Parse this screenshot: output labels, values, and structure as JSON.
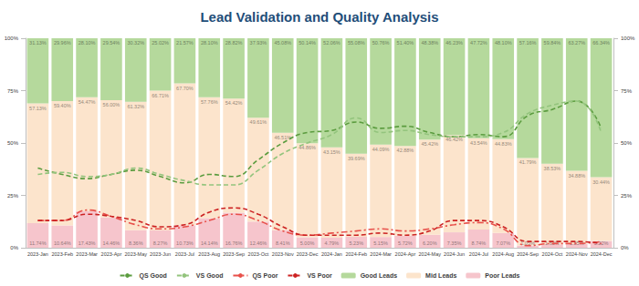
{
  "chart_data": {
    "type": "bar",
    "title": "Lead Validation and Quality Analysis",
    "categories": [
      "2023-Jan",
      "2023-Feb",
      "2023-Mar",
      "2023-Apr",
      "2023-May",
      "2023-Jun",
      "2023-Jul",
      "2023-Aug",
      "2023-Sep",
      "2023-Oct",
      "2023-Nov",
      "2023-Dec",
      "2024-Jan",
      "2024-Feb",
      "2024-Mar",
      "2024-Apr",
      "2024-May",
      "2024-Jun",
      "2024-Jul",
      "2024-Aug",
      "2024-Sep",
      "2024-Oct",
      "2024-Nov",
      "2024-Dec"
    ],
    "stacked": true,
    "grid": false,
    "legend": "bottom",
    "ylim": [
      0,
      100
    ],
    "yticks": [
      {
        "value": 0,
        "label": "0%"
      },
      {
        "value": 25,
        "label": "25%"
      },
      {
        "value": 50,
        "label": "50%"
      },
      {
        "value": 75,
        "label": "75%"
      },
      {
        "value": 100,
        "label": "100%"
      }
    ],
    "y2lim": [
      0,
      100
    ],
    "y2ticks": [
      {
        "value": 0,
        "label": "0%"
      },
      {
        "value": 25,
        "label": "25%"
      },
      {
        "value": 50,
        "label": "50%"
      },
      {
        "value": 75,
        "label": "75%"
      },
      {
        "value": 100,
        "label": "100%"
      }
    ],
    "series": [
      {
        "name": "QS Good",
        "type": "line",
        "axis": "y2",
        "color": "#5b9c3f",
        "line_style": "dashed",
        "marker": "none",
        "values": [
          38,
          35,
          33,
          35,
          37,
          34,
          31,
          35,
          34,
          42,
          50,
          55,
          56,
          60,
          57,
          58,
          55,
          53,
          54,
          53,
          63,
          66,
          70,
          57
        ]
      },
      {
        "name": "VS Good",
        "type": "line",
        "axis": "y2",
        "color": "#93c47d",
        "line_style": "dashed",
        "marker": "none",
        "values": [
          35,
          36,
          34,
          35,
          38,
          35,
          32,
          30,
          30,
          37,
          45,
          50,
          54,
          62,
          55,
          56,
          54,
          53,
          53,
          55,
          64,
          68,
          70,
          55
        ]
      },
      {
        "name": "QS Poor",
        "type": "line",
        "axis": "y2",
        "color": "#e8504a",
        "line_style": "dashdot",
        "marker": "none",
        "values": [
          13,
          13,
          18,
          15,
          11,
          9,
          10,
          13,
          16,
          13,
          8,
          6,
          7,
          8,
          9,
          8,
          9,
          11,
          12,
          9,
          1,
          2,
          2,
          3
        ]
      },
      {
        "name": "VS Poor",
        "type": "line",
        "axis": "y2",
        "color": "#cc2222",
        "line_style": "dashed",
        "marker": "none",
        "values": [
          13,
          13,
          16,
          15,
          13,
          10,
          11,
          17,
          19,
          16,
          10,
          6,
          6,
          6,
          7,
          6,
          8,
          13,
          13,
          10,
          3,
          3,
          3,
          2
        ]
      },
      {
        "name": "Good Leads",
        "type": "bar",
        "color": "#b5d99c",
        "data_labels": true,
        "values": [
          31.13,
          29.96,
          28.1,
          29.54,
          30.32,
          25.02,
          21.57,
          28.1,
          28.82,
          37.93,
          45.08,
          50.14,
          52.06,
          55.08,
          50.76,
          51.4,
          48.38,
          46.23,
          47.72,
          48.1,
          57.16,
          59.84,
          63.27,
          66.34
        ],
        "value_labels": [
          "31.13%",
          "29.96%",
          "28.10%",
          "29.54%",
          "30.32%",
          "25.02%",
          "21.57%",
          "28.10%",
          "28.82%",
          "37.93%",
          "45.08%",
          "50.14%",
          "52.06%",
          "55.08%",
          "50.76%",
          "51.40%",
          "48.38%",
          "46.23%",
          "47.72%",
          "48.10%",
          "57.16%",
          "59.84%",
          "63.27%",
          "66.34%"
        ]
      },
      {
        "name": "Mid Leads",
        "type": "bar",
        "color": "#fce4cc",
        "data_labels": true,
        "values": [
          57.13,
          59.4,
          54.47,
          56.0,
          61.32,
          66.71,
          67.7,
          57.76,
          54.42,
          49.61,
          46.51,
          44.86,
          43.15,
          39.69,
          44.09,
          42.88,
          45.42,
          46.42,
          43.54,
          44.83,
          41.79,
          38.53,
          34.88,
          30.44
        ],
        "value_labels": [
          "57.13%",
          "59.40%",
          "54.47%",
          "56.00%",
          "61.32%",
          "66.71%",
          "67.70%",
          "57.76%",
          "54.42%",
          "49.61%",
          "46.51%",
          "44.86%",
          "43.15%",
          "39.69%",
          "44.09%",
          "42.88%",
          "45.42%",
          "46.42%",
          "43.54%",
          "44.83%",
          "41.79%",
          "38.53%",
          "34.88%",
          "30.44%"
        ]
      },
      {
        "name": "Poor Leads",
        "type": "bar",
        "color": "#f6c5cc",
        "data_labels": true,
        "values": [
          11.74,
          10.64,
          17.43,
          14.46,
          8.36,
          8.27,
          10.73,
          14.14,
          16.76,
          12.46,
          8.41,
          5.0,
          4.79,
          5.23,
          5.15,
          5.72,
          6.2,
          7.35,
          8.74,
          7.07,
          1.05,
          1.63,
          1.85,
          3.22
        ],
        "value_labels": [
          "11.74%",
          "10.64%",
          "17.43%",
          "14.46%",
          "8.36%",
          "8.27%",
          "10.73%",
          "14.14%",
          "16.76%",
          "12.46%",
          "8.41%",
          "5.00%",
          "4.79%",
          "5.23%",
          "5.15%",
          "5.72%",
          "6.20%",
          "7.35%",
          "8.74%",
          "7.07%",
          "1.05%",
          "1.63%",
          "1.85%",
          "3.22%"
        ]
      }
    ]
  }
}
